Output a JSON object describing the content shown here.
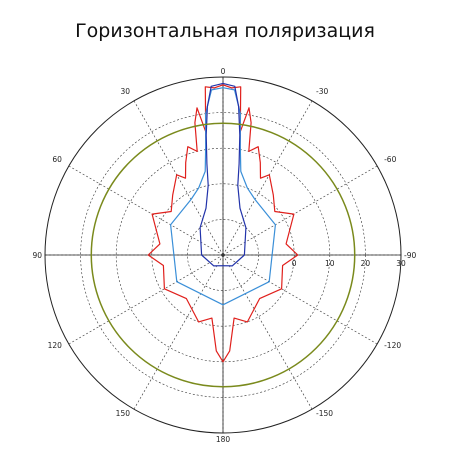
{
  "chart_data": {
    "type": "polar-line",
    "title": "Горизонтальная поляризация",
    "angle_tick_labels": [
      "0",
      "-30",
      "-60",
      "-90",
      "-120",
      "-150",
      "180",
      "150",
      "120",
      "90",
      "60",
      "30"
    ],
    "radial_tick_labels": [
      "0",
      "10",
      "20",
      "30"
    ],
    "radial_range": [
      -20,
      30
    ],
    "angle_zero": "top",
    "grid": true,
    "series": [
      {
        "color": "#e0201c",
        "points": [
          [
            -6,
            27.5
          ],
          [
            -3,
            27.0
          ],
          [
            0,
            27.8
          ],
          [
            3,
            27.0
          ],
          [
            6,
            27.5
          ],
          [
            8,
            15
          ],
          [
            10,
            22
          ],
          [
            12,
            18
          ],
          [
            14,
            10
          ],
          [
            18,
            12
          ],
          [
            22,
            8
          ],
          [
            26,
            4
          ],
          [
            30,
            6
          ],
          [
            40,
            2
          ],
          [
            50,
            -1
          ],
          [
            60,
            3
          ],
          [
            80,
            -2
          ],
          [
            90,
            1
          ],
          [
            100,
            -3
          ],
          [
            120,
            -1
          ],
          [
            140,
            -4
          ],
          [
            160,
            0
          ],
          [
            170,
            -2
          ],
          [
            176,
            7
          ],
          [
            180,
            10
          ],
          [
            184,
            7
          ],
          [
            190,
            -2
          ],
          [
            200,
            0
          ],
          [
            220,
            -4
          ],
          [
            240,
            -1
          ],
          [
            260,
            -3
          ],
          [
            270,
            1
          ],
          [
            280,
            -2
          ],
          [
            300,
            3
          ],
          [
            310,
            -1
          ],
          [
            320,
            2
          ],
          [
            330,
            6
          ],
          [
            334,
            4
          ],
          [
            338,
            8
          ],
          [
            342,
            12
          ],
          [
            346,
            10
          ],
          [
            348,
            18
          ],
          [
            350,
            22
          ],
          [
            352,
            15
          ],
          [
            354,
            27.5
          ]
        ]
      },
      {
        "color": "#3a8fd8",
        "points": [
          [
            -4,
            26.5
          ],
          [
            0,
            27
          ],
          [
            4,
            26.5
          ],
          [
            7,
            20
          ],
          [
            9,
            11
          ],
          [
            12,
            4
          ],
          [
            20,
            0
          ],
          [
            30,
            -2
          ],
          [
            60,
            -3
          ],
          [
            120,
            -5
          ],
          [
            180,
            -6
          ],
          [
            240,
            -5
          ],
          [
            300,
            -3
          ],
          [
            330,
            -2
          ],
          [
            340,
            0
          ],
          [
            348,
            4
          ],
          [
            351,
            11
          ],
          [
            353,
            20
          ],
          [
            356,
            26.5
          ]
        ]
      },
      {
        "color": "#2233aa",
        "points": [
          [
            -4,
            27.5
          ],
          [
            0,
            28.2
          ],
          [
            4,
            27.5
          ],
          [
            6,
            22
          ],
          [
            8,
            14
          ],
          [
            10,
            6
          ],
          [
            12,
            0
          ],
          [
            20,
            -6
          ],
          [
            40,
            -10
          ],
          [
            90,
            -14
          ],
          [
            140,
            -16
          ],
          [
            180,
            -17
          ],
          [
            220,
            -16
          ],
          [
            270,
            -14
          ],
          [
            320,
            -10
          ],
          [
            340,
            -6
          ],
          [
            348,
            0
          ],
          [
            350,
            6
          ],
          [
            352,
            14
          ],
          [
            354,
            22
          ],
          [
            356,
            27.5
          ]
        ]
      },
      {
        "color": "#7a8a1c",
        "constant_value": 17
      }
    ]
  }
}
